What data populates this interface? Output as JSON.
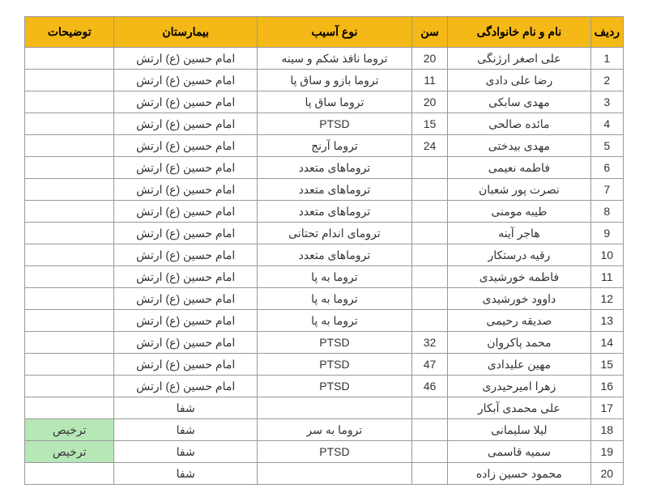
{
  "table": {
    "header_bg": "#f4b817",
    "highlight_bg": "#b6e7b6",
    "columns": [
      {
        "key": "row",
        "label": "ردیف"
      },
      {
        "key": "name",
        "label": "نام و نام خانوادگی"
      },
      {
        "key": "age",
        "label": "سن"
      },
      {
        "key": "injury",
        "label": "نوع آسیب"
      },
      {
        "key": "hospital",
        "label": "بیمارستان"
      },
      {
        "key": "notes",
        "label": "توضیحات"
      }
    ],
    "rows": [
      {
        "row": "1",
        "name": "علی اصغر ارژنگی",
        "age": "20",
        "injury": "تروما نافذ شکم و سینه",
        "hospital": "امام حسین (ع) ارتش",
        "notes": ""
      },
      {
        "row": "2",
        "name": "رضا علی دادی",
        "age": "11",
        "injury": "تروما بازو و ساق پا",
        "hospital": "امام حسین (ع) ارتش",
        "notes": ""
      },
      {
        "row": "3",
        "name": "مهدی سابکی",
        "age": "20",
        "injury": "تروما ساق پا",
        "hospital": "امام حسین (ع) ارتش",
        "notes": ""
      },
      {
        "row": "4",
        "name": "مائده صالحی",
        "age": "15",
        "injury": "PTSD",
        "hospital": "امام حسین (ع) ارتش",
        "notes": ""
      },
      {
        "row": "5",
        "name": "مهدی بیدختی",
        "age": "24",
        "injury": "تروما آرنج",
        "hospital": "امام حسین (ع) ارتش",
        "notes": ""
      },
      {
        "row": "6",
        "name": "فاطمه نعیمی",
        "age": "",
        "injury": "تروماهای متعدد",
        "hospital": "امام حسین (ع) ارتش",
        "notes": ""
      },
      {
        "row": "7",
        "name": "نصرت پور شعبان",
        "age": "",
        "injury": "تروماهای متعدد",
        "hospital": "امام حسین (ع) ارتش",
        "notes": ""
      },
      {
        "row": "8",
        "name": "طیبه مومنی",
        "age": "",
        "injury": "تروماهای متعدد",
        "hospital": "امام حسین (ع) ارتش",
        "notes": ""
      },
      {
        "row": "9",
        "name": "هاجر آینه",
        "age": "",
        "injury": "ترومای اندام تحتانی",
        "hospital": "امام حسین (ع) ارتش",
        "notes": ""
      },
      {
        "row": "10",
        "name": "رقیه درستکار",
        "age": "",
        "injury": "تروماهای متعدد",
        "hospital": "امام حسین (ع) ارتش",
        "notes": ""
      },
      {
        "row": "11",
        "name": "فاطمه خورشیدی",
        "age": "",
        "injury": "تروما به پا",
        "hospital": "امام حسین (ع) ارتش",
        "notes": ""
      },
      {
        "row": "12",
        "name": "داوود خورشیدی",
        "age": "",
        "injury": "تروما به پا",
        "hospital": "امام حسین (ع) ارتش",
        "notes": ""
      },
      {
        "row": "13",
        "name": "صدیقه رحیمی",
        "age": "",
        "injury": "تروما به پا",
        "hospital": "امام حسین (ع) ارتش",
        "notes": ""
      },
      {
        "row": "14",
        "name": "محمد پاکروان",
        "age": "32",
        "injury": "PTSD",
        "hospital": "امام حسین (ع) ارتش",
        "notes": ""
      },
      {
        "row": "15",
        "name": "مهین علیدادی",
        "age": "47",
        "injury": "PTSD",
        "hospital": "امام حسین (ع) ارتش",
        "notes": ""
      },
      {
        "row": "16",
        "name": "زهرا امیرحیدری",
        "age": "46",
        "injury": "PTSD",
        "hospital": "امام حسین (ع) ارتش",
        "notes": ""
      },
      {
        "row": "17",
        "name": "علی محمدی آبکار",
        "age": "",
        "injury": "",
        "hospital": "شفا",
        "notes": ""
      },
      {
        "row": "18",
        "name": "لیلا سلیمانی",
        "age": "",
        "injury": "تروما به سر",
        "hospital": "شفا",
        "notes": "ترخیص",
        "notes_hl": true
      },
      {
        "row": "19",
        "name": "سمیه قاسمی",
        "age": "",
        "injury": "PTSD",
        "hospital": "شفا",
        "notes": "ترخیص",
        "notes_hl": true
      },
      {
        "row": "20",
        "name": "محمود حسین زاده",
        "age": "",
        "injury": "",
        "hospital": "شفا",
        "notes": ""
      }
    ]
  }
}
